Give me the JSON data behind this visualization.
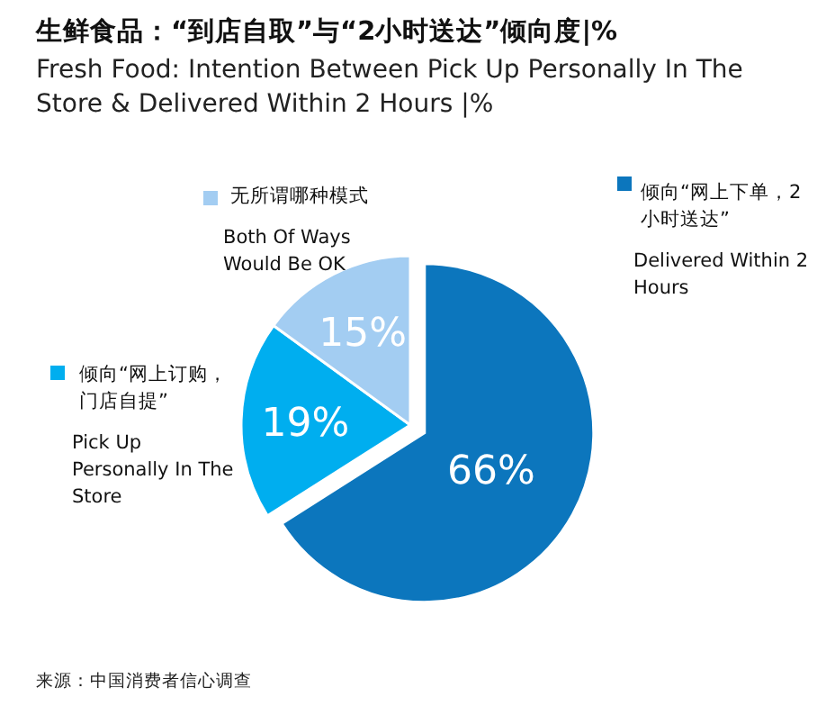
{
  "chart_data": {
    "type": "pie",
    "title": "生鲜食品：“到店自取”与“2小时送达”倾向度|%",
    "subtitle": "Fresh Food: Intention Between Pick Up Personally In The Store &  Delivered Within 2 Hours |%",
    "categories": [
      "倾向“网上下单，2小时送达”",
      "倾向“网上订购，门店自提”",
      "无所谓哪种模式"
    ],
    "values": [
      66,
      19,
      15
    ],
    "value_labels": [
      "66%",
      "19%",
      "15%"
    ],
    "colors": [
      "#0c76bd",
      "#00aeef",
      "#a3cdf2"
    ],
    "legend": "right",
    "annotations": [
      "Delivered Within 2 Hours",
      "Pick Up Personally In The Store",
      "Both Of Ways Would Be OK",
      "来源：中国消费者信心调查"
    ]
  }
}
